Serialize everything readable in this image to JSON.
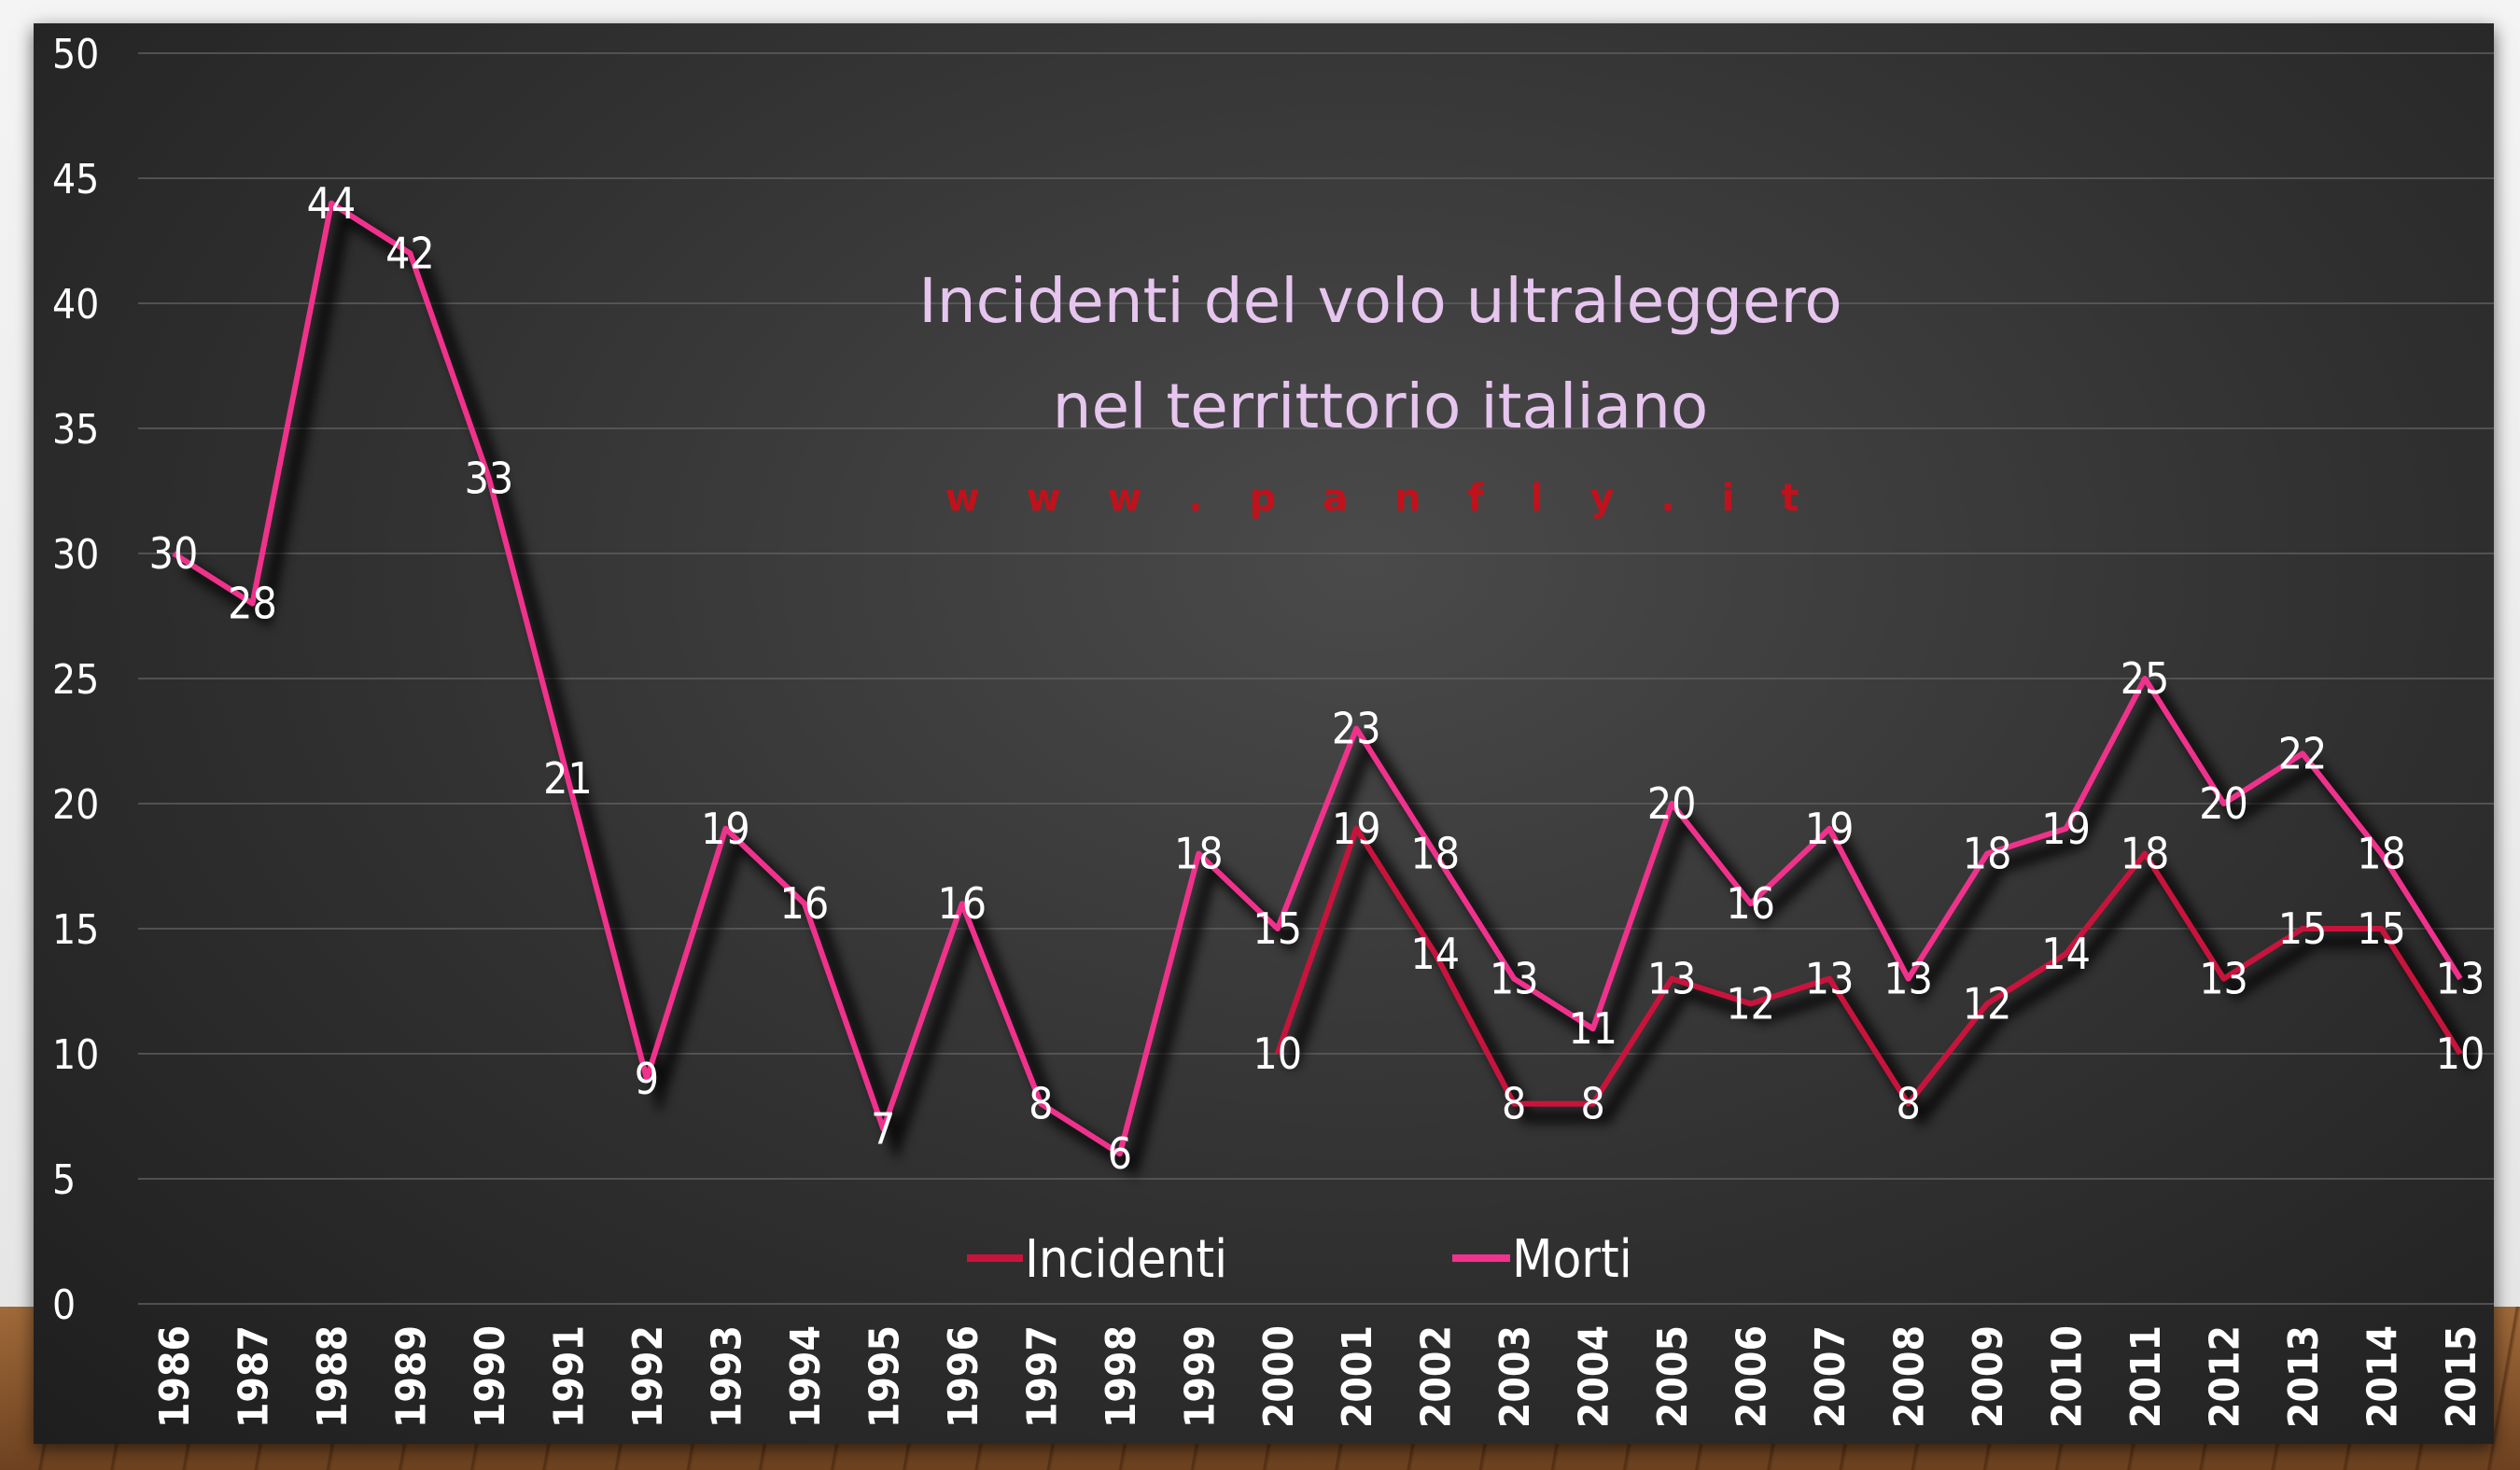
{
  "chart_data": {
    "type": "line",
    "title_lines": [
      "Incidenti del volo ultraleggero",
      "nel territtorio italiano"
    ],
    "subtitle": "w w w . p a n f l y . i t",
    "xlabel": "",
    "ylabel": "",
    "ylim": [
      0,
      50
    ],
    "yticks": [
      0,
      5,
      10,
      15,
      20,
      25,
      30,
      35,
      40,
      45,
      50
    ],
    "grid": true,
    "legend_position": "bottom",
    "categories": [
      "1986",
      "1987",
      "1988",
      "1989",
      "1990",
      "1991",
      "1992",
      "1993",
      "1994",
      "1995",
      "1996",
      "1997",
      "1998",
      "1999",
      "2000",
      "2001",
      "2002",
      "2003",
      "2004",
      "2005",
      "2006",
      "2007",
      "2008",
      "2009",
      "2010",
      "2011",
      "2012",
      "2013",
      "2014",
      "2015"
    ],
    "series": [
      {
        "name": "Incidenti",
        "color": "#c8143c",
        "values": [
          null,
          null,
          null,
          null,
          null,
          null,
          null,
          null,
          null,
          null,
          null,
          null,
          null,
          null,
          10,
          19,
          14,
          8,
          8,
          13,
          12,
          13,
          8,
          12,
          14,
          18,
          13,
          15,
          15,
          10
        ]
      },
      {
        "name": "Morti",
        "color": "#f0328c",
        "values": [
          30,
          28,
          44,
          42,
          33,
          21,
          9,
          19,
          16,
          7,
          16,
          8,
          6,
          18,
          15,
          23,
          18,
          13,
          11,
          20,
          16,
          19,
          13,
          18,
          19,
          25,
          20,
          22,
          18,
          13
        ]
      }
    ]
  }
}
